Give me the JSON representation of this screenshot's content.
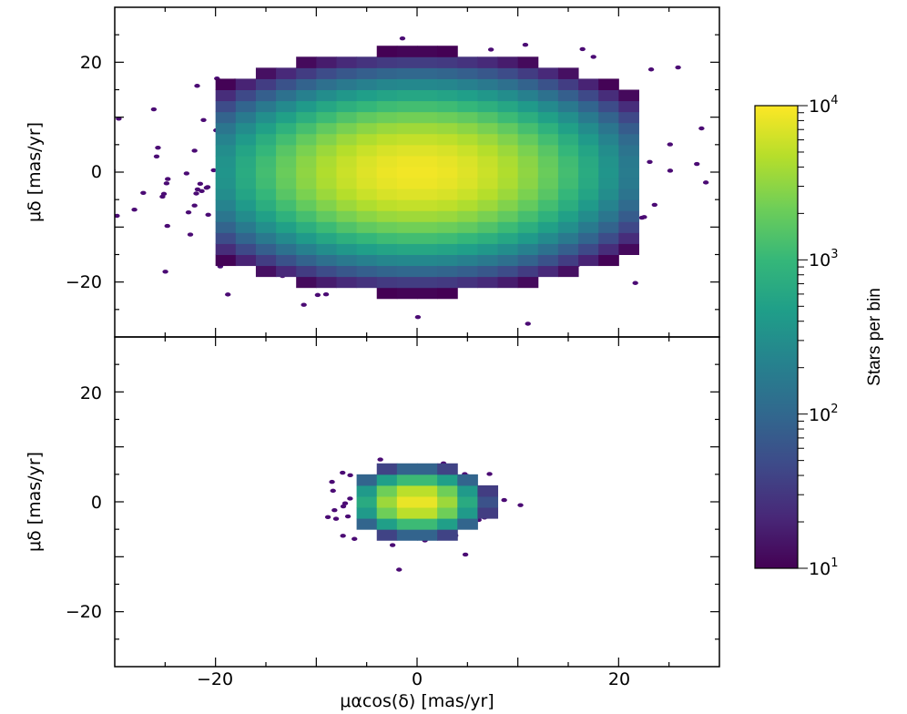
{
  "chart_data": [
    {
      "type": "heatmap",
      "panel": "top",
      "xlabel": "",
      "ylabel": "μδ [mas/yr]",
      "xlim": [
        -30,
        30
      ],
      "ylim": [
        -30,
        30
      ],
      "xticks": [
        -20,
        0,
        20
      ],
      "yticks": [
        -20,
        0,
        20
      ],
      "ytick_labels": [
        "−20",
        "0",
        "20"
      ],
      "grid": false,
      "distribution": {
        "center": [
          0,
          0
        ],
        "sigma_x": 7.5,
        "sigma_y": 6.0,
        "peak_count": 9000,
        "min_count": 10,
        "extent_x": [
          -20,
          22
        ],
        "extent_y": [
          -23,
          23
        ]
      },
      "scatter_points": 600
    },
    {
      "type": "heatmap",
      "panel": "bottom",
      "xlabel": "μαcos(δ) [mas/yr]",
      "ylabel": "μδ [mas/yr]",
      "xlim": [
        -30,
        30
      ],
      "ylim": [
        -30,
        30
      ],
      "xticks": [
        -20,
        0,
        20
      ],
      "xtick_labels": [
        "−20",
        "0",
        "20"
      ],
      "yticks": [
        -20,
        0,
        20
      ],
      "ytick_labels": [
        "−20",
        "0",
        "20"
      ],
      "grid": false,
      "distribution": {
        "center": [
          0,
          0
        ],
        "sigma_x": 2.2,
        "sigma_y": 2.0,
        "peak_count": 9000,
        "min_count": 10,
        "extent_x": [
          -6,
          7
        ],
        "extent_y": [
          -7,
          6
        ]
      },
      "scatter_points": 180
    }
  ],
  "colorbar": {
    "label": "Stars per bin",
    "scale": "log",
    "range": [
      10,
      10000
    ],
    "ticks": [
      10,
      100,
      1000,
      10000
    ],
    "tick_labels": [
      {
        "base": "10",
        "exp": "1"
      },
      {
        "base": "10",
        "exp": "2"
      },
      {
        "base": "10",
        "exp": "3"
      },
      {
        "base": "10",
        "exp": "4"
      }
    ],
    "colormap": "viridis",
    "colors": [
      "#440154",
      "#482878",
      "#3e4a89",
      "#31688e",
      "#26828e",
      "#1f9e89",
      "#35b779",
      "#6ece58",
      "#b5de2b",
      "#fde725"
    ]
  },
  "scatter_color": "#4b0b74"
}
